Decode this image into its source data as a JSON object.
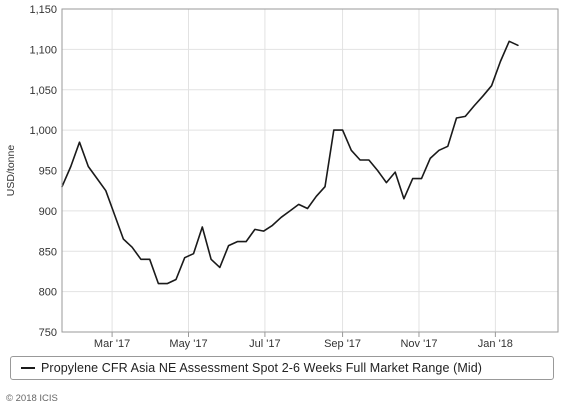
{
  "chart_data": {
    "type": "line",
    "title": "",
    "xlabel": "",
    "ylabel": "USD/tonne",
    "ylim": [
      750,
      1150
    ],
    "y_ticks": [
      "750",
      "800",
      "850",
      "900",
      "950",
      "1,000",
      "1,050",
      "1,100",
      "1,150"
    ],
    "x_range": [
      "2017-01-20",
      "2018-02-20"
    ],
    "x_ticks": [
      {
        "date": "2017-03-01",
        "label": "Mar '17"
      },
      {
        "date": "2017-05-01",
        "label": "May '17"
      },
      {
        "date": "2017-07-01",
        "label": "Jul '17"
      },
      {
        "date": "2017-09-01",
        "label": "Sep '17"
      },
      {
        "date": "2017-11-01",
        "label": "Nov '17"
      },
      {
        "date": "2018-01-01",
        "label": "Jan '18"
      }
    ],
    "grid": true,
    "legend_position": "bottom",
    "series": [
      {
        "name": "Propylene CFR Asia NE Assessment Spot 2-6 Weeks Full Market Range (Mid)",
        "color": "#1a1a1a",
        "points": [
          [
            "2017-01-20",
            930
          ],
          [
            "2017-01-27",
            955
          ],
          [
            "2017-02-03",
            985
          ],
          [
            "2017-02-10",
            955
          ],
          [
            "2017-02-17",
            940
          ],
          [
            "2017-02-24",
            925
          ],
          [
            "2017-03-03",
            895
          ],
          [
            "2017-03-10",
            865
          ],
          [
            "2017-03-17",
            855
          ],
          [
            "2017-03-24",
            840
          ],
          [
            "2017-03-31",
            840
          ],
          [
            "2017-04-07",
            810
          ],
          [
            "2017-04-14",
            810
          ],
          [
            "2017-04-21",
            815
          ],
          [
            "2017-04-28",
            842
          ],
          [
            "2017-05-05",
            847
          ],
          [
            "2017-05-12",
            880
          ],
          [
            "2017-05-19",
            840
          ],
          [
            "2017-05-26",
            830
          ],
          [
            "2017-06-02",
            857
          ],
          [
            "2017-06-09",
            862
          ],
          [
            "2017-06-16",
            862
          ],
          [
            "2017-06-23",
            877
          ],
          [
            "2017-06-30",
            875
          ],
          [
            "2017-07-07",
            882
          ],
          [
            "2017-07-14",
            892
          ],
          [
            "2017-07-21",
            900
          ],
          [
            "2017-07-28",
            908
          ],
          [
            "2017-08-04",
            903
          ],
          [
            "2017-08-11",
            918
          ],
          [
            "2017-08-18",
            930
          ],
          [
            "2017-08-25",
            1000
          ],
          [
            "2017-09-01",
            1000
          ],
          [
            "2017-09-08",
            975
          ],
          [
            "2017-09-15",
            963
          ],
          [
            "2017-09-22",
            963
          ],
          [
            "2017-09-29",
            950
          ],
          [
            "2017-10-06",
            935
          ],
          [
            "2017-10-13",
            948
          ],
          [
            "2017-10-20",
            915
          ],
          [
            "2017-10-27",
            940
          ],
          [
            "2017-11-03",
            940
          ],
          [
            "2017-11-10",
            965
          ],
          [
            "2017-11-17",
            975
          ],
          [
            "2017-11-24",
            980
          ],
          [
            "2017-12-01",
            1015
          ],
          [
            "2017-12-08",
            1017
          ],
          [
            "2017-12-15",
            1030
          ],
          [
            "2017-12-22",
            1042
          ],
          [
            "2017-12-29",
            1055
          ],
          [
            "2018-01-05",
            1085
          ],
          [
            "2018-01-12",
            1110
          ],
          [
            "2018-01-19",
            1105
          ]
        ]
      }
    ]
  },
  "copyright": "© 2018 ICIS"
}
